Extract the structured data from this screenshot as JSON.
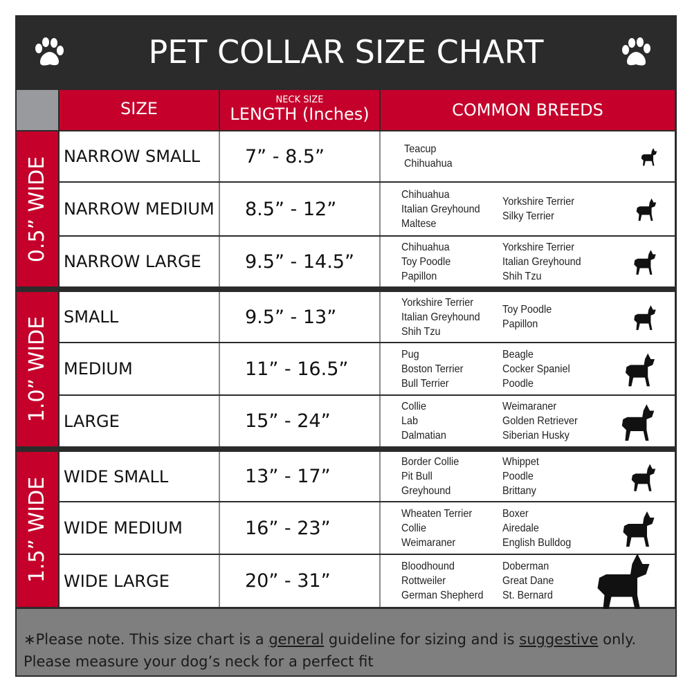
{
  "title": "PET COLLAR SIZE CHART",
  "icons": {
    "paw": "paw-print-icon",
    "dog": "dog-silhouette-icon"
  },
  "colors": {
    "header_red": "#c4002b",
    "frame": "#2b2b2b",
    "footer_gray": "#7f7f7f"
  },
  "headers": {
    "size": "SIZE",
    "neck_small": "NECK SIZE",
    "length": "LENGTH (Inches)",
    "breeds": "COMMON BREEDS"
  },
  "groups": [
    {
      "label": "0.5” WIDE"
    },
    {
      "label": "1.0” WIDE"
    },
    {
      "label": "1.5” WIDE"
    }
  ],
  "rows": [
    {
      "size": "NARROW SMALL",
      "length": "7” - 8.5”",
      "breeds_a": [
        "Teacup",
        "Chihuahua"
      ],
      "breeds_b": []
    },
    {
      "size": "NARROW MEDIUM",
      "length": "8.5” - 12”",
      "breeds_a": [
        "Chihuahua",
        "Italian Greyhound",
        "Maltese"
      ],
      "breeds_b": [
        "Yorkshire Terrier",
        "Silky Terrier"
      ]
    },
    {
      "size": "NARROW LARGE",
      "length": "9.5” - 14.5”",
      "breeds_a": [
        "Chihuahua",
        "Toy Poodle",
        "Papillon"
      ],
      "breeds_b": [
        "Yorkshire Terrier",
        "Italian Greyhound",
        "Shih Tzu"
      ]
    },
    {
      "size": "SMALL",
      "length": "9.5” - 13”",
      "breeds_a": [
        "Yorkshire Terrier",
        "Italian Greyhound",
        "Shih Tzu"
      ],
      "breeds_b": [
        "Toy Poodle",
        "Papillon"
      ]
    },
    {
      "size": "MEDIUM",
      "length": "11” - 16.5”",
      "breeds_a": [
        "Pug",
        "Boston Terrier",
        "Bull Terrier"
      ],
      "breeds_b": [
        "Beagle",
        "Cocker Spaniel",
        "Poodle"
      ]
    },
    {
      "size": "LARGE",
      "length": "15” - 24”",
      "breeds_a": [
        "Collie",
        "Lab",
        "Dalmatian"
      ],
      "breeds_b": [
        "Weimaraner",
        "Golden Retriever",
        "Siberian Husky"
      ]
    },
    {
      "size": "WIDE SMALL",
      "length": "13” - 17”",
      "breeds_a": [
        "Border Collie",
        "Pit Bull",
        "Greyhound"
      ],
      "breeds_b": [
        "Whippet",
        "Poodle",
        "Brittany"
      ]
    },
    {
      "size": "WIDE MEDIUM",
      "length": "16” - 23”",
      "breeds_a": [
        "Wheaten Terrier",
        "Collie",
        "Weimaraner"
      ],
      "breeds_b": [
        "Boxer",
        "Airedale",
        "English Bulldog"
      ]
    },
    {
      "size": "WIDE LARGE",
      "length": "20” - 31”",
      "breeds_a": [
        "Bloodhound",
        "Rottweiler",
        "German Shepherd"
      ],
      "breeds_b": [
        "Doberman",
        "Great Dane",
        "St. Bernard"
      ]
    }
  ],
  "footer": {
    "p1": "∗Please note. This size chart is a ",
    "u1": "general",
    "p2": " guideline for sizing and is ",
    "u2": "suggestive",
    "p3": " only.",
    "line2": "Please measure your dog’s neck for a perfect fit"
  }
}
